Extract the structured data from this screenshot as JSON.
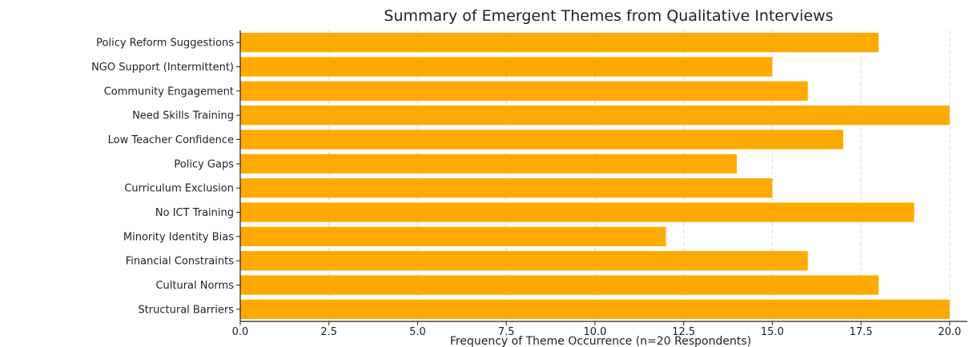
{
  "chart_data": {
    "type": "bar",
    "orientation": "horizontal",
    "title": "Summary of Emergent Themes from Qualitative Interviews",
    "xlabel": "Frequency of Theme Occurrence (n=20 Respondents)",
    "ylabel": "",
    "xlim": [
      0,
      20.5
    ],
    "xticks": [
      "0.0",
      "2.5",
      "5.0",
      "7.5",
      "10.0",
      "12.5",
      "15.0",
      "17.5",
      "20.0"
    ],
    "grid": true,
    "categories": [
      "Policy Reform Suggestions",
      "NGO Support (Intermittent)",
      "Community Engagement",
      "Need Skills Training",
      "Low Teacher Confidence",
      "Policy Gaps",
      "Curriculum Exclusion",
      "No ICT Training",
      "Minority Identity Bias",
      "Financial Constraints",
      "Cultural Norms",
      "Structural Barriers"
    ],
    "values": [
      18,
      15,
      16,
      20,
      17,
      14,
      15,
      19,
      12,
      16,
      18,
      20
    ],
    "bar_color": "#FFAA00"
  }
}
